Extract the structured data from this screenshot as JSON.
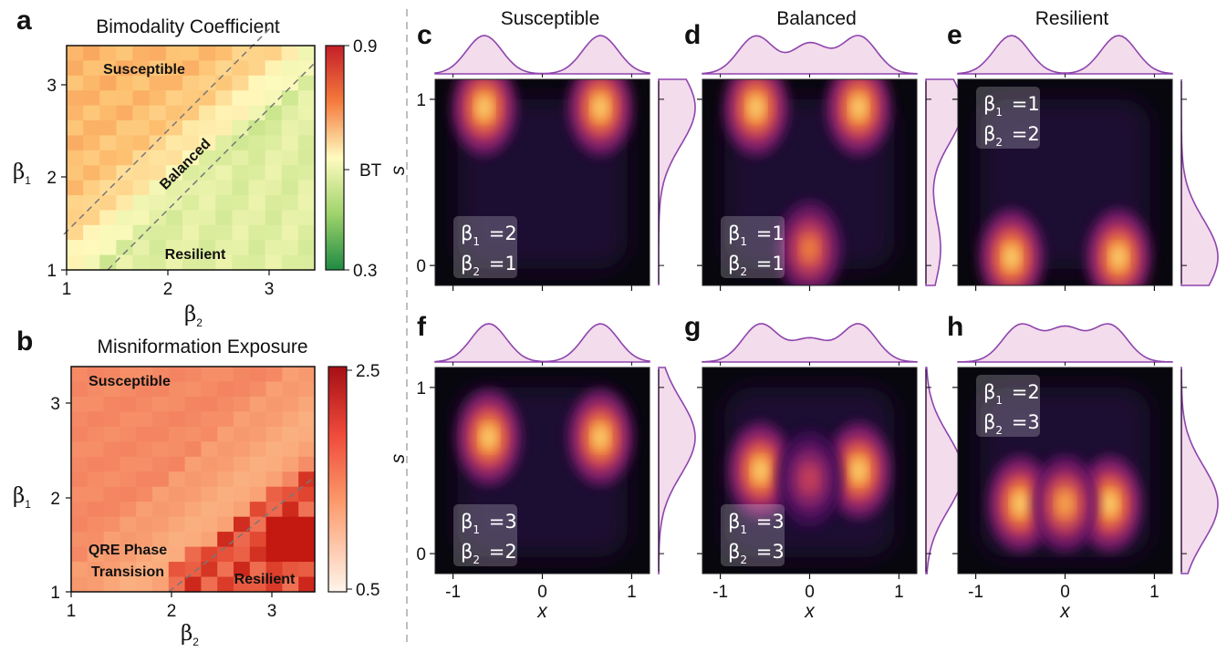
{
  "panels": {
    "a": {
      "letter": "a",
      "title": "Bimodality Coefficient",
      "cb_max": "0.9",
      "cb_mid": "BT",
      "cb_min": "0.3",
      "region_susceptible": "Susceptible",
      "region_balanced": "Balanced",
      "region_resilient": "Resilient"
    },
    "b": {
      "letter": "b",
      "title": "Misniformation Exposure",
      "cb_max": "2.5",
      "cb_min": "0.5",
      "region_susceptible": "Susceptible",
      "region_qre_1": "QRE Phase",
      "region_qre_2": "Transision",
      "region_resilient": "Resilient"
    },
    "c": {
      "letter": "c",
      "column_title": "Susceptible",
      "b1_val": "2",
      "b2_val": "1"
    },
    "d": {
      "letter": "d",
      "column_title": "Balanced",
      "b1_val": "1",
      "b2_val": "1"
    },
    "e": {
      "letter": "e",
      "column_title": "Resilient",
      "b1_val": "1",
      "b2_val": "2"
    },
    "f": {
      "letter": "f",
      "b1_val": "3",
      "b2_val": "2"
    },
    "g": {
      "letter": "g",
      "b1_val": "3",
      "b2_val": "3"
    },
    "h": {
      "letter": "h",
      "b1_val": "2",
      "b2_val": "3"
    }
  },
  "labels": {
    "beta": "β",
    "sub1": "1",
    "sub2": "2",
    "eq": "=",
    "x_label": "x",
    "s_label": "s",
    "heat_ticks": [
      "1",
      "2",
      "3"
    ],
    "x_ticks": [
      "-1",
      "0",
      "1"
    ],
    "s_ticks": [
      "1",
      "0"
    ]
  },
  "colors": {
    "background_dark": "#08070d",
    "marginal_fill": "#f3dcec",
    "marginal_line": "#8e44ad",
    "bc_high": "#c41e28",
    "bc_mid": "#fffbbf",
    "bc_low": "#1f8a43",
    "me_high": "#a50f15",
    "me_low": "#fff5eb"
  },
  "chart_data": [
    {
      "type": "heatmap",
      "panel": "a",
      "title": "Bimodality Coefficient",
      "xlabel": "β2",
      "ylabel": "β1",
      "xlim": [
        1,
        3.45
      ],
      "ylim": [
        1,
        3.45
      ],
      "clim": [
        0.3,
        0.9
      ],
      "grid_size": [
        15,
        15
      ],
      "colorbar_ticks": [
        "0.9",
        "BT",
        "0.3"
      ],
      "regions": [
        "Susceptible",
        "Balanced",
        "Resilient"
      ],
      "boundaries": [
        {
          "intercept": 1.3
        },
        {
          "intercept": -0.4
        }
      ]
    },
    {
      "type": "heatmap",
      "panel": "b",
      "title": "Misniformation Exposure",
      "xlabel": "β2",
      "ylabel": "β1",
      "xlim": [
        1,
        3.45
      ],
      "ylim": [
        1,
        3.45
      ],
      "clim": [
        0.5,
        2.5
      ],
      "grid_size": [
        15,
        15
      ],
      "colorbar_ticks": [
        "2.5",
        "0.5"
      ],
      "regions": [
        "Susceptible",
        "QRE Phase Transision",
        "Resilient"
      ],
      "boundaries": [
        {
          "intercept": -1.2
        }
      ]
    },
    {
      "type": "heatmap",
      "panel": "c",
      "column": "Susceptible",
      "beta1": 2,
      "beta2": 1,
      "xlabel": "x",
      "ylabel": "s",
      "xlim": [
        -1.2,
        1.2
      ],
      "ylim": [
        -0.12,
        1.12
      ],
      "density_peaks": [
        {
          "x": -0.65,
          "s": 0.95,
          "w": 1.0
        },
        {
          "x": 0.65,
          "s": 0.95,
          "w": 1.0
        }
      ]
    },
    {
      "type": "heatmap",
      "panel": "d",
      "column": "Balanced",
      "beta1": 1,
      "beta2": 1,
      "xlabel": "x",
      "ylabel": "s",
      "xlim": [
        -1.2,
        1.2
      ],
      "ylim": [
        -0.12,
        1.12
      ],
      "density_peaks": [
        {
          "x": -0.6,
          "s": 0.95,
          "w": 1.0
        },
        {
          "x": 0.55,
          "s": 0.95,
          "w": 1.0
        },
        {
          "x": 0.0,
          "s": 0.1,
          "w": 0.8
        }
      ]
    },
    {
      "type": "heatmap",
      "panel": "e",
      "column": "Resilient",
      "beta1": 1,
      "beta2": 2,
      "xlabel": "x",
      "ylabel": "s",
      "xlim": [
        -1.2,
        1.2
      ],
      "ylim": [
        -0.12,
        1.12
      ],
      "density_peaks": [
        {
          "x": -0.6,
          "s": 0.05,
          "w": 1.0
        },
        {
          "x": 0.6,
          "s": 0.05,
          "w": 1.0
        }
      ]
    },
    {
      "type": "heatmap",
      "panel": "f",
      "column": "Susceptible",
      "beta1": 3,
      "beta2": 2,
      "xlabel": "x",
      "ylabel": "s",
      "xlim": [
        -1.2,
        1.2
      ],
      "ylim": [
        -0.12,
        1.12
      ],
      "density_peaks": [
        {
          "x": -0.6,
          "s": 0.7,
          "w": 1.0
        },
        {
          "x": 0.65,
          "s": 0.7,
          "w": 1.0
        }
      ]
    },
    {
      "type": "heatmap",
      "panel": "g",
      "column": "Balanced",
      "beta1": 3,
      "beta2": 3,
      "xlabel": "x",
      "ylabel": "s",
      "xlim": [
        -1.2,
        1.2
      ],
      "ylim": [
        -0.12,
        1.12
      ],
      "density_peaks": [
        {
          "x": -0.55,
          "s": 0.5,
          "w": 1.0
        },
        {
          "x": 0.55,
          "s": 0.5,
          "w": 1.0
        },
        {
          "x": 0.0,
          "s": 0.45,
          "w": 0.6
        }
      ]
    },
    {
      "type": "heatmap",
      "panel": "h",
      "column": "Resilient",
      "beta1": 2,
      "beta2": 3,
      "xlabel": "x",
      "ylabel": "s",
      "xlim": [
        -1.2,
        1.2
      ],
      "ylim": [
        -0.12,
        1.12
      ],
      "density_peaks": [
        {
          "x": -0.5,
          "s": 0.3,
          "w": 1.0
        },
        {
          "x": 0.5,
          "s": 0.3,
          "w": 1.0
        },
        {
          "x": 0.0,
          "s": 0.3,
          "w": 0.9
        }
      ]
    }
  ]
}
